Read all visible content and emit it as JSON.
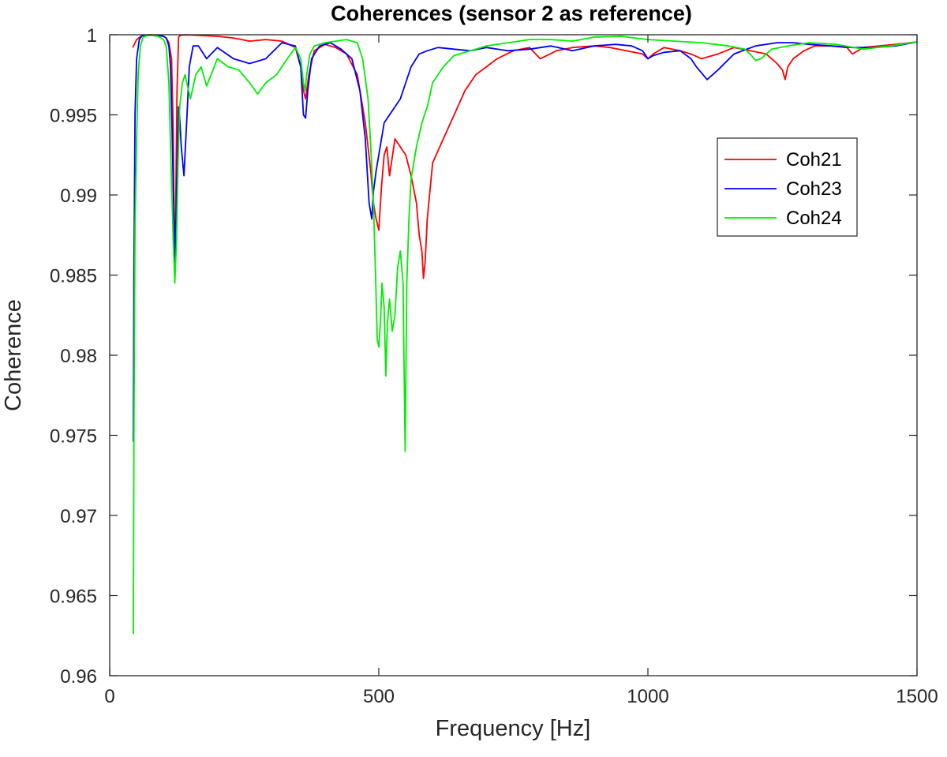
{
  "chart_data": {
    "type": "line",
    "title": "Coherences (sensor 2 as reference)",
    "xlabel": "Frequency [Hz]",
    "ylabel": "Coherence",
    "xlim": [
      0,
      1500
    ],
    "ylim": [
      0.96,
      1.0
    ],
    "xticks": [
      0,
      500,
      1000,
      1500
    ],
    "xtick_labels": [
      "0",
      "500",
      "1000",
      "1500"
    ],
    "yticks": [
      0.96,
      0.965,
      0.97,
      0.975,
      0.98,
      0.985,
      0.99,
      0.995,
      1.0
    ],
    "ytick_labels": [
      "0.96",
      "0.965",
      "0.97",
      "0.975",
      "0.98",
      "0.985",
      "0.99",
      "0.995",
      "1"
    ],
    "grid": false,
    "legend_position": "upper-right",
    "series": [
      {
        "name": "Coh21",
        "color": "#ff0000",
        "x": [
          43,
          50,
          60,
          70,
          80,
          90,
          100,
          105,
          110,
          115,
          118,
          120,
          122,
          125,
          128,
          131,
          135,
          140,
          150,
          170,
          200,
          230,
          260,
          290,
          320,
          345,
          355,
          360,
          364,
          370,
          380,
          400,
          420,
          440,
          460,
          475,
          485,
          490,
          495,
          500,
          505,
          510,
          515,
          520,
          530,
          540,
          550,
          560,
          570,
          575,
          580,
          583,
          586,
          590,
          600,
          620,
          640,
          660,
          680,
          700,
          720,
          750,
          780,
          800,
          830,
          860,
          900,
          930,
          960,
          990,
          1000,
          1010,
          1030,
          1060,
          1080,
          1100,
          1130,
          1160,
          1190,
          1220,
          1240,
          1250,
          1255,
          1260,
          1270,
          1290,
          1310,
          1340,
          1370,
          1380,
          1400,
          1430,
          1460,
          1500
        ],
        "y": [
          0.9992,
          0.9997,
          0.99995,
          0.99999,
          0.99999,
          0.99998,
          0.9999,
          0.9998,
          0.9995,
          0.9985,
          0.994,
          0.9875,
          0.9872,
          0.9965,
          0.99985,
          0.99995,
          0.99998,
          0.99999,
          0.99998,
          0.99995,
          0.9999,
          0.9998,
          0.9996,
          0.9997,
          0.9996,
          0.9992,
          0.998,
          0.9965,
          0.996,
          0.9975,
          0.999,
          0.9994,
          0.9992,
          0.9988,
          0.9975,
          0.9945,
          0.9915,
          0.9895,
          0.9885,
          0.9878,
          0.9905,
          0.9925,
          0.993,
          0.9912,
          0.9935,
          0.993,
          0.9925,
          0.9912,
          0.9895,
          0.9875,
          0.9865,
          0.9848,
          0.9858,
          0.9885,
          0.992,
          0.9935,
          0.995,
          0.9965,
          0.9975,
          0.998,
          0.9985,
          0.999,
          0.9992,
          0.9985,
          0.999,
          0.9992,
          0.9993,
          0.9992,
          0.999,
          0.9988,
          0.9985,
          0.9988,
          0.9992,
          0.999,
          0.9988,
          0.9985,
          0.9988,
          0.9992,
          0.999,
          0.9988,
          0.9982,
          0.9978,
          0.9972,
          0.998,
          0.9985,
          0.999,
          0.9993,
          0.9993,
          0.9992,
          0.9988,
          0.9992,
          0.9993,
          0.9994,
          0.99955
        ]
      },
      {
        "name": "Coh23",
        "color": "#0000ff",
        "x": [
          44,
          45,
          47,
          50,
          55,
          60,
          70,
          80,
          90,
          100,
          105,
          110,
          113,
          116,
          119,
          122,
          125,
          128,
          130,
          133,
          138,
          143,
          148,
          155,
          165,
          180,
          200,
          230,
          260,
          290,
          320,
          345,
          355,
          360,
          364,
          368,
          375,
          390,
          410,
          430,
          450,
          465,
          475,
          482,
          487,
          490,
          495,
          500,
          505,
          510,
          520,
          530,
          540,
          550,
          560,
          575,
          590,
          610,
          640,
          670,
          700,
          740,
          780,
          820,
          860,
          900,
          940,
          970,
          990,
          1000,
          1010,
          1030,
          1060,
          1080,
          1090,
          1100,
          1110,
          1130,
          1160,
          1200,
          1240,
          1270,
          1300,
          1340,
          1380,
          1420,
          1460,
          1500
        ],
        "y": [
          0.9746,
          0.985,
          0.995,
          0.9985,
          0.9997,
          0.99993,
          0.99998,
          0.99998,
          0.99995,
          0.9999,
          0.9998,
          0.9993,
          0.998,
          0.994,
          0.989,
          0.9858,
          0.9915,
          0.9955,
          0.9948,
          0.993,
          0.9912,
          0.9945,
          0.998,
          0.9993,
          0.9993,
          0.9985,
          0.9992,
          0.9985,
          0.9982,
          0.9985,
          0.9995,
          0.9993,
          0.998,
          0.995,
          0.9948,
          0.9965,
          0.9985,
          0.9993,
          0.9995,
          0.9991,
          0.9985,
          0.9965,
          0.9935,
          0.9895,
          0.9885,
          0.9902,
          0.9915,
          0.9925,
          0.9935,
          0.9945,
          0.995,
          0.9955,
          0.996,
          0.997,
          0.998,
          0.9988,
          0.999,
          0.9992,
          0.9991,
          0.999,
          0.9992,
          0.999,
          0.9991,
          0.9993,
          0.999,
          0.9993,
          0.9994,
          0.9993,
          0.999,
          0.9985,
          0.9987,
          0.9989,
          0.999,
          0.9985,
          0.998,
          0.9976,
          0.9972,
          0.9978,
          0.9988,
          0.9993,
          0.9995,
          0.9995,
          0.9994,
          0.9993,
          0.9992,
          0.9992,
          0.9993,
          0.99955
        ]
      },
      {
        "name": "Coh24",
        "color": "#00ee00",
        "x": [
          44,
          45,
          47,
          50,
          53,
          57,
          62,
          70,
          80,
          90,
          100,
          105,
          110,
          114,
          118,
          121,
          124,
          127,
          130,
          135,
          140,
          150,
          160,
          170,
          180,
          200,
          220,
          240,
          260,
          275,
          290,
          310,
          330,
          345,
          355,
          360,
          363,
          366,
          372,
          380,
          400,
          420,
          440,
          460,
          470,
          480,
          485,
          490,
          494,
          497,
          500,
          503,
          506,
          510,
          513,
          516,
          520,
          525,
          530,
          535,
          540,
          545,
          549,
          552,
          556,
          560,
          570,
          580,
          590,
          600,
          620,
          640,
          670,
          700,
          740,
          780,
          820,
          860,
          900,
          950,
          1000,
          1050,
          1100,
          1150,
          1180,
          1190,
          1200,
          1210,
          1230,
          1260,
          1300,
          1350,
          1400,
          1450,
          1500
        ],
        "y": [
          0.9626,
          0.975,
          0.988,
          0.9935,
          0.9975,
          0.9993,
          0.99985,
          0.99995,
          0.99995,
          0.9999,
          0.9997,
          0.9993,
          0.997,
          0.992,
          0.9872,
          0.9845,
          0.987,
          0.992,
          0.9955,
          0.997,
          0.9975,
          0.996,
          0.9975,
          0.998,
          0.9968,
          0.9985,
          0.998,
          0.9978,
          0.997,
          0.9963,
          0.997,
          0.9975,
          0.9985,
          0.9992,
          0.9985,
          0.997,
          0.9965,
          0.9975,
          0.9988,
          0.9993,
          0.9995,
          0.9996,
          0.9997,
          0.9995,
          0.9985,
          0.996,
          0.993,
          0.9895,
          0.985,
          0.981,
          0.9805,
          0.982,
          0.9845,
          0.983,
          0.9787,
          0.982,
          0.9835,
          0.9815,
          0.9825,
          0.9855,
          0.9865,
          0.9845,
          0.974,
          0.9845,
          0.9885,
          0.991,
          0.993,
          0.9945,
          0.9955,
          0.997,
          0.998,
          0.9987,
          0.999,
          0.9993,
          0.9995,
          0.9997,
          0.9997,
          0.9996,
          0.99985,
          0.9999,
          0.9997,
          0.9996,
          0.9995,
          0.9993,
          0.9991,
          0.9988,
          0.9984,
          0.9985,
          0.9991,
          0.9993,
          0.9995,
          0.9994,
          0.9991,
          0.9993,
          0.99955
        ]
      }
    ]
  }
}
